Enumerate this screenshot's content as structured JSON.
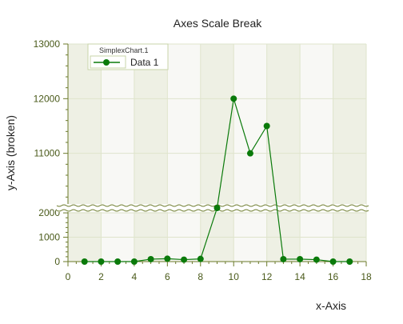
{
  "chart_data": {
    "type": "line",
    "title": "Axes Scale Break",
    "xlabel": "x-Axis",
    "ylabel": "y-Axis (broken)",
    "x_ticks": [
      0,
      2,
      4,
      6,
      8,
      10,
      12,
      14,
      16,
      18
    ],
    "y_ticks_lower": [
      0,
      1000,
      2000
    ],
    "y_ticks_upper": [
      11000,
      12000,
      13000
    ],
    "xlim": [
      0,
      18
    ],
    "ylim_lower": [
      0,
      2200
    ],
    "ylim_upper": [
      10000,
      13000
    ],
    "scale_break": [
      2200,
      10000
    ],
    "grid": true,
    "legend_title": "SimplexChart.1",
    "legend_position": "top-left",
    "series": [
      {
        "name": "Data 1",
        "color": "#0a7a0a",
        "marker": "circle",
        "x": [
          1,
          2,
          3,
          4,
          5,
          6,
          7,
          8,
          9,
          10,
          11,
          12,
          13,
          14,
          15,
          16,
          17
        ],
        "y": [
          0,
          0,
          0,
          0,
          100,
          120,
          80,
          110,
          2200,
          12000,
          11000,
          11500,
          100,
          100,
          80,
          0,
          0
        ]
      }
    ]
  }
}
